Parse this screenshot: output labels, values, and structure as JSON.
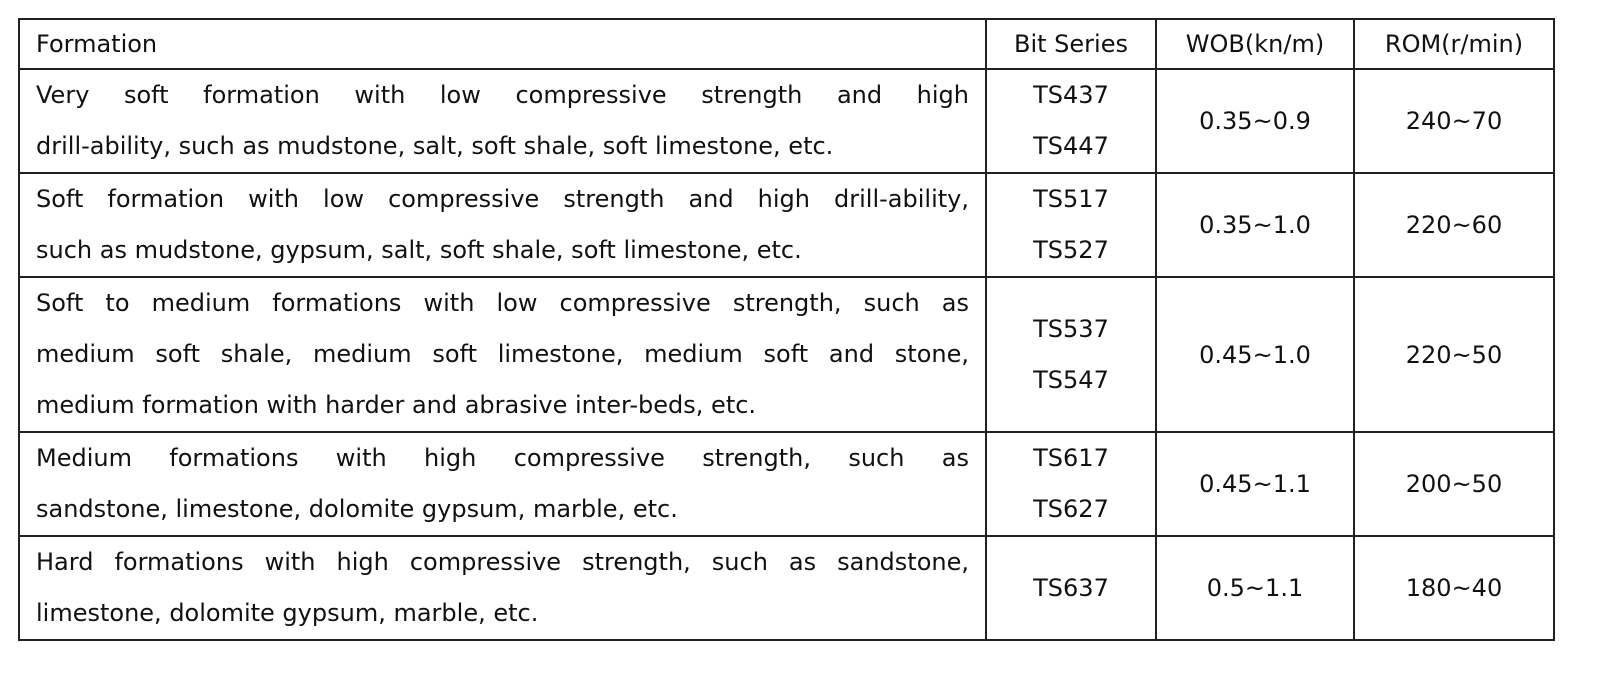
{
  "table": {
    "header": [
      "Formation",
      "Bit Series",
      "WOB(kn/m)",
      "ROM(r/min)"
    ],
    "rows": [
      {
        "formation": [
          "Very soft formation with low compressive strength and high",
          "drill-ability, such as mudstone, salt, soft shale, soft limestone, etc."
        ],
        "bit_series": [
          "TS437",
          "TS447"
        ],
        "wob": "0.35~0.9",
        "rom": "240~70"
      },
      {
        "formation": [
          "Soft formation with low compressive strength and high drill-ability,",
          "such as mudstone, gypsum, salt, soft shale, soft limestone, etc."
        ],
        "bit_series": [
          "TS517",
          "TS527"
        ],
        "wob": "0.35~1.0",
        "rom": "220~60"
      },
      {
        "formation": [
          "Soft to medium formations with low compressive strength, such as",
          "medium soft shale, medium soft limestone, medium soft and stone,",
          "medium formation with harder and abrasive inter-beds, etc."
        ],
        "bit_series": [
          "TS537",
          "TS547"
        ],
        "wob": "0.45~1.0",
        "rom": "220~50"
      },
      {
        "formation": [
          "Medium formations with high compressive strength, such as",
          "sandstone, limestone, dolomite gypsum, marble, etc."
        ],
        "bit_series": [
          "TS617",
          "TS627"
        ],
        "wob": "0.45~1.1",
        "rom": "200~50"
      },
      {
        "formation": [
          "Hard formations with high compressive strength, such as sandstone,",
          "limestone, dolomite gypsum, marble, etc."
        ],
        "bit_series": [
          "TS637"
        ],
        "wob": "0.5~1.1",
        "rom": "180~40"
      }
    ]
  }
}
